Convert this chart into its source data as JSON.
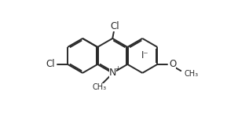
{
  "bg_color": "#ffffff",
  "line_color": "#2a2a2a",
  "line_width": 1.4,
  "text_color": "#2a2a2a",
  "font_size": 8.5,
  "xlim": [
    0,
    10
  ],
  "ylim": [
    0,
    5
  ],
  "figsize": [
    3.17,
    1.54
  ],
  "dpi": 100
}
